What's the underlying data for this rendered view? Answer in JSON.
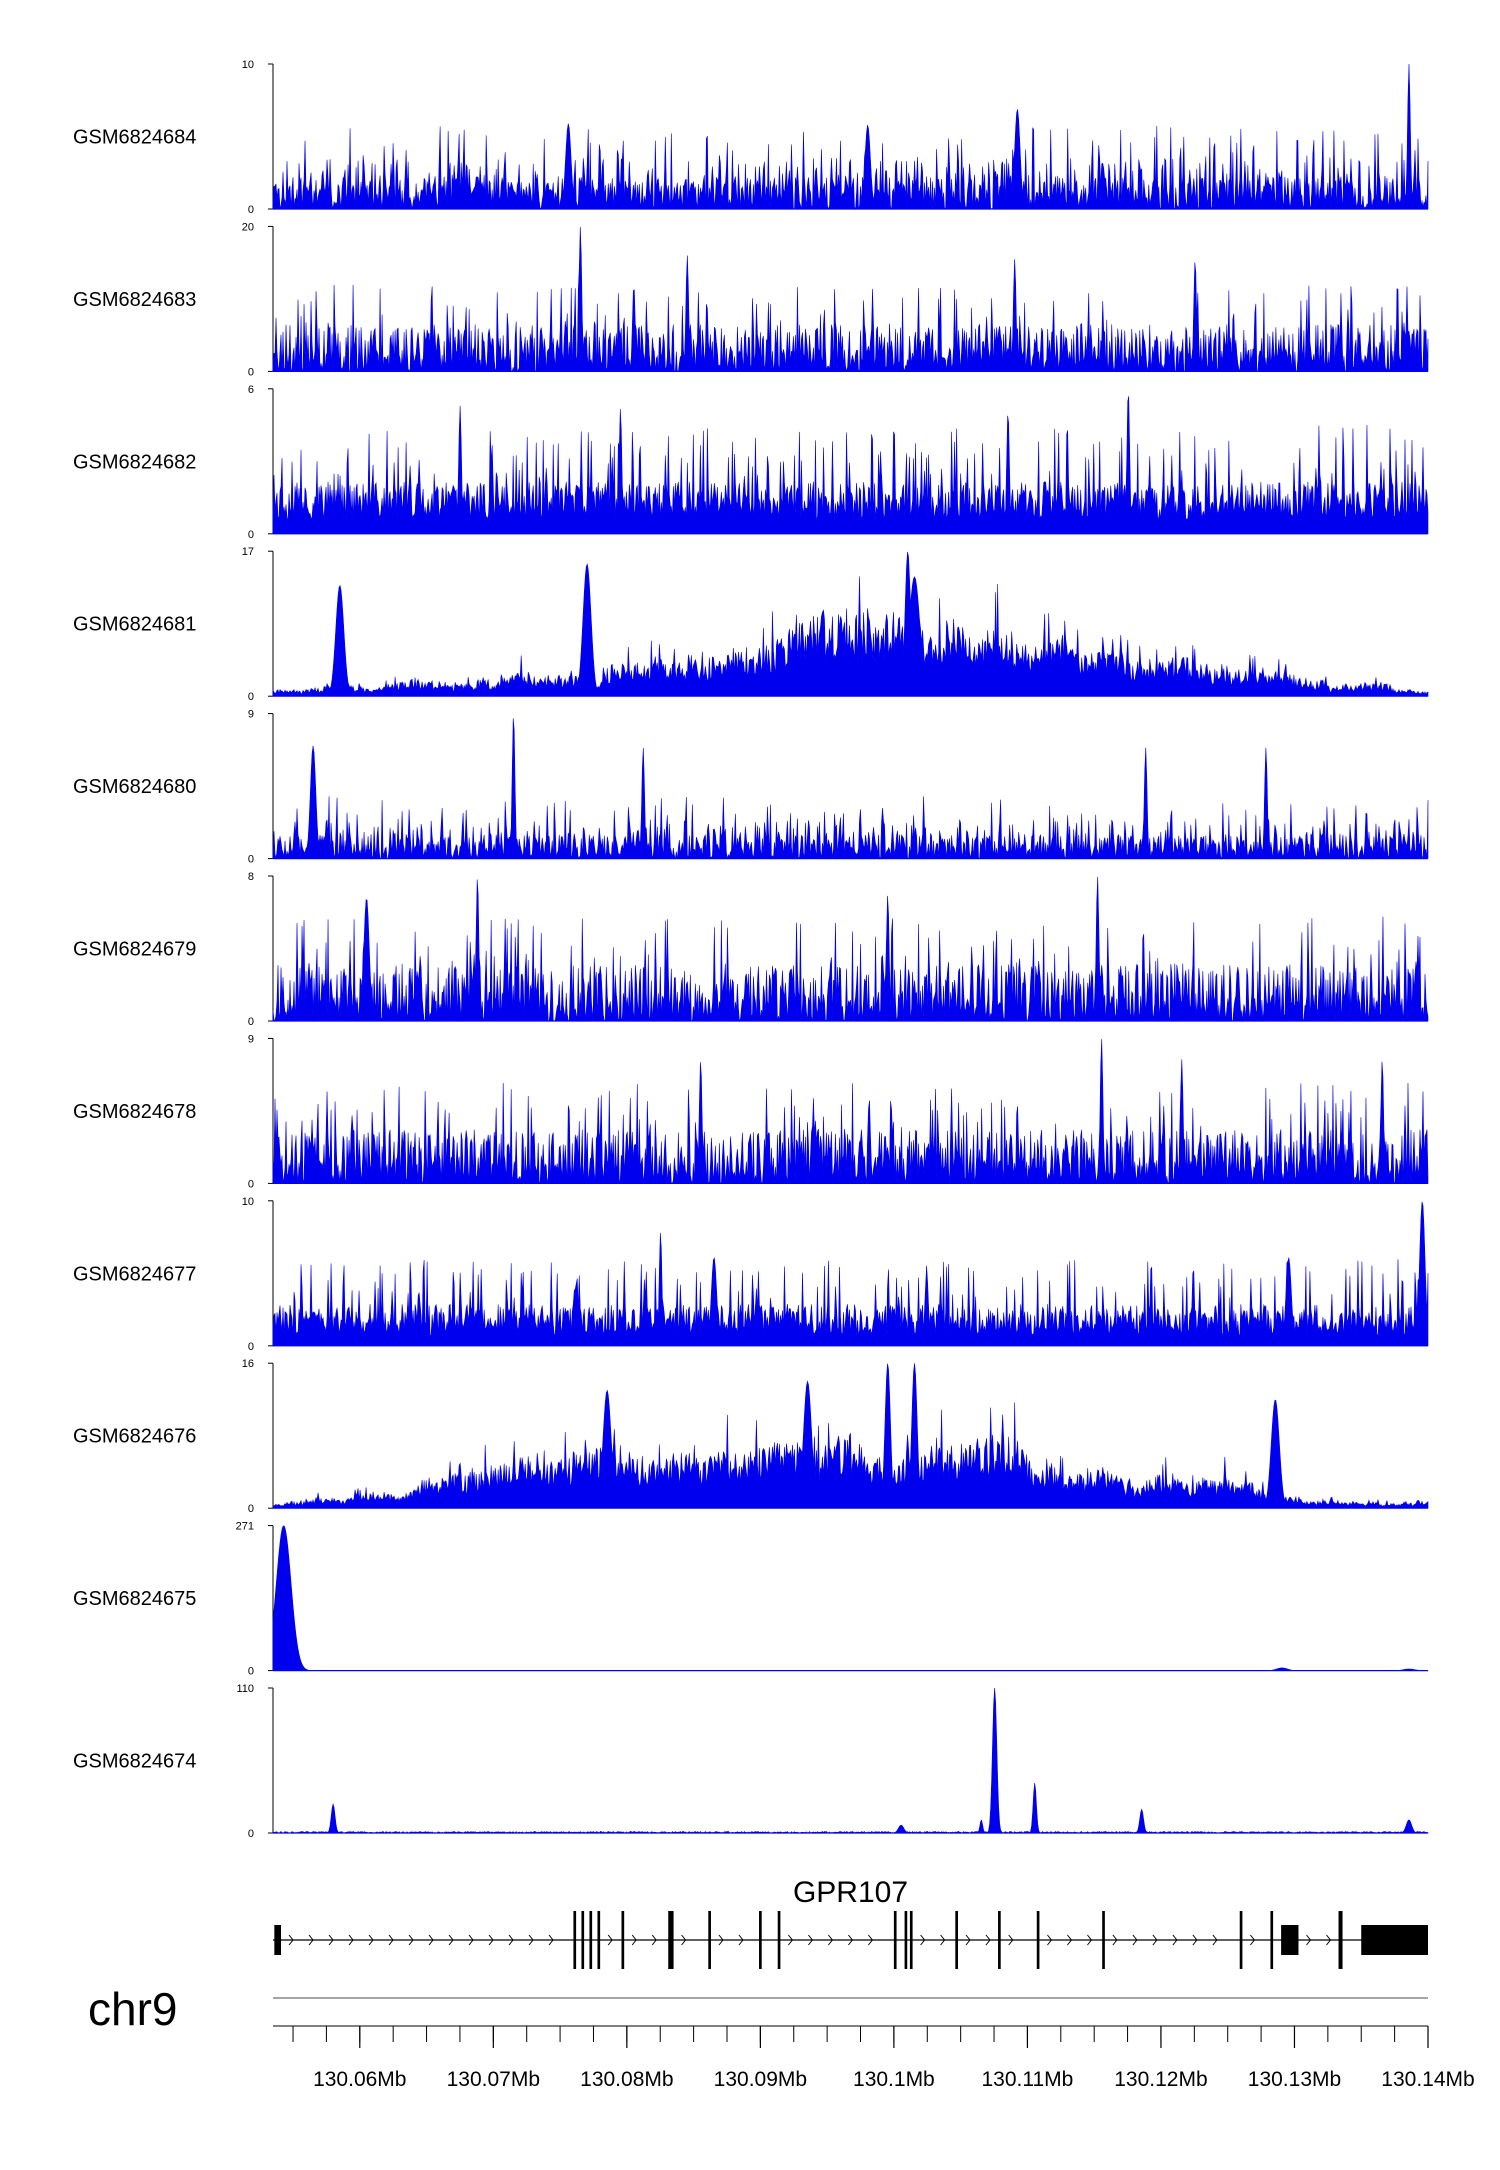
{
  "chart_data": {
    "type": "area",
    "title": "",
    "chromosome": "chr9",
    "genome_range_mb": [
      130.0535,
      130.14
    ],
    "x_ticks": [
      "130.06Mb",
      "130.07Mb",
      "130.08Mb",
      "130.09Mb",
      "130.1Mb",
      "130.11Mb",
      "130.12Mb",
      "130.13Mb",
      "130.14Mb"
    ],
    "x_tick_values_mb": [
      130.06,
      130.07,
      130.08,
      130.09,
      130.1,
      130.11,
      130.12,
      130.13,
      130.14
    ],
    "fill_color": "#0000ee",
    "tracks": [
      {
        "name": "GSM6824684",
        "ymax": 10,
        "ymax_label": "10",
        "ymin_label": "0",
        "style": "sparse",
        "seed": 11,
        "base": 2.2,
        "peaks": [
          {
            "pos": 130.1385,
            "h": 10,
            "w": 0.0001
          },
          {
            "pos": 130.098,
            "h": 5.8,
            "w": 0.0002
          },
          {
            "pos": 130.1092,
            "h": 6.9,
            "w": 0.0002
          },
          {
            "pos": 130.0756,
            "h": 5.9,
            "w": 0.0002
          }
        ]
      },
      {
        "name": "GSM6824683",
        "ymax": 20,
        "ymax_label": "20",
        "ymin_label": "0",
        "style": "spiky",
        "seed": 23,
        "base": 5,
        "peaks": [
          {
            "pos": 130.0765,
            "h": 20,
            "w": 0.0001
          },
          {
            "pos": 130.0805,
            "h": 12,
            "w": 0.0001
          },
          {
            "pos": 130.0845,
            "h": 16,
            "w": 0.0001
          },
          {
            "pos": 130.109,
            "h": 15.5,
            "w": 0.0001
          },
          {
            "pos": 130.1225,
            "h": 15.5,
            "w": 0.0001
          }
        ]
      },
      {
        "name": "GSM6824682",
        "ymax": 6,
        "ymax_label": "6",
        "ymin_label": "0",
        "style": "dense",
        "seed": 37,
        "base": 1.8,
        "peaks": [
          {
            "pos": 130.1175,
            "h": 6,
            "w": 0.0001
          },
          {
            "pos": 130.0675,
            "h": 5.3,
            "w": 0.0001
          },
          {
            "pos": 130.0795,
            "h": 5.2,
            "w": 0.0001
          },
          {
            "pos": 130.1085,
            "h": 5.1,
            "w": 0.0001
          }
        ]
      },
      {
        "name": "GSM6824681",
        "ymax": 17,
        "ymax_label": "17",
        "ymin_label": "0",
        "style": "broad",
        "seed": 41,
        "base": 5,
        "peaks": [
          {
            "pos": 130.101,
            "h": 17,
            "w": 0.0002
          },
          {
            "pos": 130.077,
            "h": 15.5,
            "w": 0.0003
          },
          {
            "pos": 130.0585,
            "h": 13,
            "w": 0.0003
          },
          {
            "pos": 130.1015,
            "h": 14,
            "w": 0.0004
          }
        ]
      },
      {
        "name": "GSM6824680",
        "ymax": 9,
        "ymax_label": "9",
        "ymin_label": "0",
        "style": "sparse",
        "seed": 53,
        "base": 1.5,
        "peaks": [
          {
            "pos": 130.0715,
            "h": 9,
            "w": 0.0001
          },
          {
            "pos": 130.0565,
            "h": 7,
            "w": 0.0002
          },
          {
            "pos": 130.0812,
            "h": 6.9,
            "w": 0.0001
          },
          {
            "pos": 130.1188,
            "h": 6.9,
            "w": 0.0001
          },
          {
            "pos": 130.1278,
            "h": 6.9,
            "w": 0.0001
          }
        ]
      },
      {
        "name": "GSM6824679",
        "ymax": 8,
        "ymax_label": "8",
        "ymin_label": "0",
        "style": "spiky",
        "seed": 67,
        "base": 2.4,
        "peaks": [
          {
            "pos": 130.0688,
            "h": 8,
            "w": 0.0001
          },
          {
            "pos": 130.1152,
            "h": 8,
            "w": 0.0001
          },
          {
            "pos": 130.0995,
            "h": 7,
            "w": 0.0001
          },
          {
            "pos": 130.0605,
            "h": 6.8,
            "w": 0.0002
          }
        ]
      },
      {
        "name": "GSM6824678",
        "ymax": 9,
        "ymax_label": "9",
        "ymin_label": "0",
        "style": "spiky",
        "seed": 71,
        "base": 2.6,
        "peaks": [
          {
            "pos": 130.1155,
            "h": 9,
            "w": 0.0001
          },
          {
            "pos": 130.0855,
            "h": 7.7,
            "w": 0.0001
          },
          {
            "pos": 130.1215,
            "h": 7.7,
            "w": 0.0001
          },
          {
            "pos": 130.1365,
            "h": 7.7,
            "w": 0.0001
          }
        ]
      },
      {
        "name": "GSM6824677",
        "ymax": 10,
        "ymax_label": "10",
        "ymin_label": "0",
        "style": "dense",
        "seed": 83,
        "base": 2.4,
        "peaks": [
          {
            "pos": 130.1395,
            "h": 10,
            "w": 0.0002
          },
          {
            "pos": 130.0825,
            "h": 7.9,
            "w": 0.0001
          },
          {
            "pos": 130.1295,
            "h": 6.1,
            "w": 0.0002
          },
          {
            "pos": 130.0865,
            "h": 6.1,
            "w": 0.0002
          }
        ]
      },
      {
        "name": "GSM6824676",
        "ymax": 16,
        "ymax_label": "16",
        "ymin_label": "0",
        "style": "broad",
        "seed": 97,
        "base": 4.6,
        "peaks": [
          {
            "pos": 130.0995,
            "h": 16,
            "w": 0.0002
          },
          {
            "pos": 130.1015,
            "h": 16,
            "w": 0.0002
          },
          {
            "pos": 130.0785,
            "h": 13,
            "w": 0.0003
          },
          {
            "pos": 130.0935,
            "h": 14,
            "w": 0.0003
          },
          {
            "pos": 130.1285,
            "h": 12,
            "w": 0.0003
          }
        ]
      },
      {
        "name": "GSM6824675",
        "ymax": 271,
        "ymax_label": "271",
        "ymin_label": "0",
        "style": "single",
        "seed": 101,
        "base": 0.5,
        "peaks": [
          {
            "pos": 130.0543,
            "h": 271,
            "w": 0.00055
          },
          {
            "pos": 130.129,
            "h": 5,
            "w": 0.0004
          },
          {
            "pos": 130.1385,
            "h": 3,
            "w": 0.0004
          }
        ]
      },
      {
        "name": "GSM6824674",
        "ymax": 110,
        "ymax_label": "110",
        "ymin_label": "0",
        "style": "single",
        "seed": 113,
        "base": 1.2,
        "peaks": [
          {
            "pos": 130.1075,
            "h": 110,
            "w": 0.00016
          },
          {
            "pos": 130.1105,
            "h": 38,
            "w": 0.00012
          },
          {
            "pos": 130.1185,
            "h": 18,
            "w": 0.00014
          },
          {
            "pos": 130.058,
            "h": 22,
            "w": 0.00014
          },
          {
            "pos": 130.1065,
            "h": 10,
            "w": 0.0001
          },
          {
            "pos": 130.1385,
            "h": 10,
            "w": 0.0002
          },
          {
            "pos": 130.1005,
            "h": 6,
            "w": 0.0002
          }
        ]
      }
    ],
    "gene": {
      "name": "GPR107",
      "strand": "+",
      "start_mb": 130.0535,
      "end_mb": 130.14,
      "exons_mb": [
        [
          130.0536,
          130.0541
        ],
        [
          130.076,
          130.0762
        ],
        [
          130.0766,
          130.0768
        ],
        [
          130.0772,
          130.0774
        ],
        [
          130.0778,
          130.078
        ],
        [
          130.0796,
          130.0798
        ],
        [
          130.0831,
          130.0835
        ],
        [
          130.0861,
          130.0863
        ],
        [
          130.0899,
          130.0901
        ],
        [
          130.0913,
          130.0915
        ],
        [
          130.1,
          130.1002
        ],
        [
          130.1008,
          130.101
        ],
        [
          130.1012,
          130.1014
        ],
        [
          130.1046,
          130.1048
        ],
        [
          130.1078,
          130.108
        ],
        [
          130.1107,
          130.1109
        ],
        [
          130.1156,
          130.1158
        ],
        [
          130.1259,
          130.1261
        ],
        [
          130.1282,
          130.1284
        ],
        [
          130.129,
          130.1303
        ],
        [
          130.1333,
          130.1336
        ],
        [
          130.135,
          130.14
        ]
      ]
    }
  }
}
